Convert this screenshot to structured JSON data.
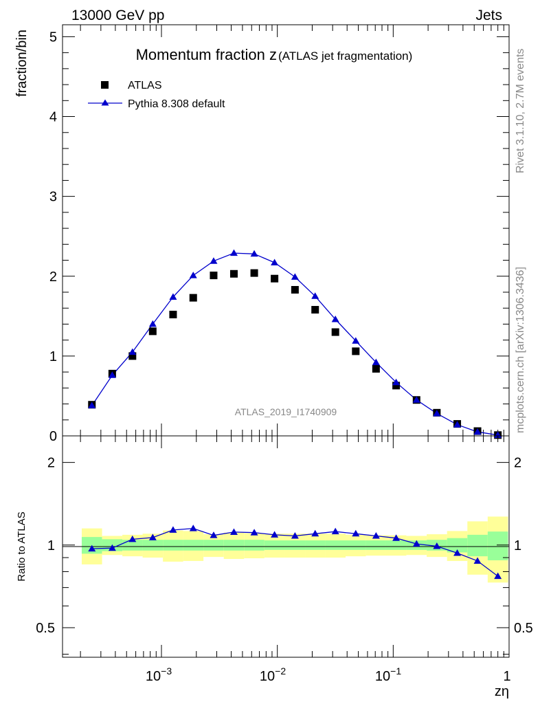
{
  "header": {
    "left": "13000 GeV pp",
    "right": "Jets"
  },
  "side": {
    "top": "Rivet 3.1.10,  2.7M events",
    "bottom": "mcplots.cern.ch [arXiv:1306.3436]"
  },
  "colors": {
    "mc": "#0000cc",
    "band_inner": "#99ff99",
    "band_outer": "#ffff99",
    "data": "#000000"
  },
  "chart_data": [
    {
      "type": "scatter",
      "title": "Momentum fraction z",
      "subtitle": "(ATLAS jet fragmentation)",
      "ylabel": "fraction/bin",
      "ylim": [
        0,
        5.15
      ],
      "yticks": [
        "0",
        "1",
        "2",
        "3",
        "4",
        "5"
      ],
      "xscale": "log",
      "xlim": [
        0.00014,
        1.0
      ],
      "watermark": "ATLAS_2019_I1740909",
      "legend_position": "top-left",
      "x": [
        0.000251,
        0.000376,
        0.000562,
        0.000841,
        0.00126,
        0.00188,
        0.00282,
        0.00422,
        0.00632,
        0.00946,
        0.0142,
        0.0212,
        0.0317,
        0.0475,
        0.0711,
        0.106,
        0.159,
        0.238,
        0.357,
        0.534,
        0.8
      ],
      "series": [
        {
          "name": "ATLAS",
          "marker": "square",
          "values": [
            0.39,
            0.78,
            1.0,
            1.31,
            1.52,
            1.73,
            2.01,
            2.03,
            2.04,
            1.97,
            1.83,
            1.58,
            1.3,
            1.06,
            0.84,
            0.63,
            0.45,
            0.29,
            0.15,
            0.06,
            0.01
          ]
        },
        {
          "name": "Pythia 8.308 default",
          "marker": "triangle",
          "values": [
            0.38,
            0.76,
            1.05,
            1.4,
            1.74,
            2.01,
            2.19,
            2.29,
            2.28,
            2.17,
            1.99,
            1.75,
            1.46,
            1.19,
            0.92,
            0.67,
            0.45,
            0.28,
            0.14,
            0.05,
            0.01
          ]
        }
      ]
    },
    {
      "type": "line",
      "ylabel": "Ratio to ATLAS",
      "xlabel": "zη",
      "yscale": "log",
      "ylim": [
        0.39,
        2.5
      ],
      "yticks": [
        "0.5",
        "1",
        "2"
      ],
      "xtick_labels": {
        "e3": "10",
        "e2": "10",
        "e1": "10",
        "exp": "−3",
        "exp2": "−2",
        "exp1": "−1",
        "one": "1"
      },
      "x": [
        0.000251,
        0.000376,
        0.000562,
        0.000841,
        0.00126,
        0.00188,
        0.00282,
        0.00422,
        0.00632,
        0.00946,
        0.0142,
        0.0212,
        0.0317,
        0.0475,
        0.0711,
        0.106,
        0.159,
        0.238,
        0.357,
        0.534,
        0.8
      ],
      "series": [
        {
          "name": "Pythia 8.308 default",
          "values": [
            0.97,
            0.975,
            1.05,
            1.065,
            1.135,
            1.15,
            1.085,
            1.115,
            1.11,
            1.09,
            1.08,
            1.1,
            1.12,
            1.1,
            1.08,
            1.06,
            1.01,
            0.99,
            0.935,
            0.875,
            0.77
          ]
        }
      ],
      "band_inner": {
        "low": [
          0.93,
          0.95,
          0.955,
          0.955,
          0.955,
          0.955,
          0.955,
          0.955,
          0.955,
          0.96,
          0.96,
          0.96,
          0.96,
          0.96,
          0.96,
          0.96,
          0.96,
          0.955,
          0.94,
          0.91,
          0.88
        ],
        "high": [
          1.07,
          1.05,
          1.045,
          1.045,
          1.045,
          1.045,
          1.045,
          1.045,
          1.045,
          1.04,
          1.04,
          1.04,
          1.04,
          1.04,
          1.04,
          1.04,
          1.04,
          1.045,
          1.06,
          1.09,
          1.12
        ]
      },
      "band_outer": {
        "low": [
          0.85,
          0.92,
          0.91,
          0.9,
          0.87,
          0.875,
          0.905,
          0.89,
          0.895,
          0.9,
          0.9,
          0.9,
          0.9,
          0.91,
          0.915,
          0.915,
          0.92,
          0.905,
          0.875,
          0.78,
          0.73
        ],
        "high": [
          1.15,
          1.08,
          1.09,
          1.1,
          1.13,
          1.125,
          1.095,
          1.11,
          1.105,
          1.1,
          1.1,
          1.1,
          1.1,
          1.09,
          1.085,
          1.085,
          1.08,
          1.095,
          1.125,
          1.22,
          1.27
        ]
      }
    }
  ]
}
